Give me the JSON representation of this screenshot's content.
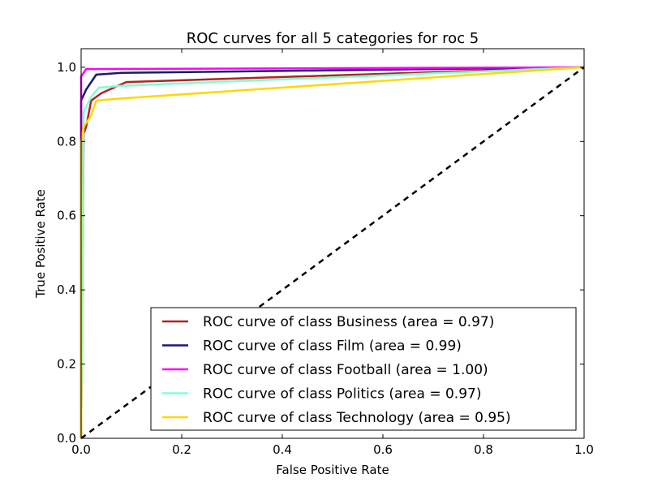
{
  "chart_data": {
    "type": "line",
    "title": "ROC curves for all 5 categories for roc 5",
    "xlabel": "False Positive Rate",
    "ylabel": "True Positive Rate",
    "xlim": [
      0.0,
      1.0
    ],
    "ylim": [
      0.0,
      1.05
    ],
    "x_ticks": [
      "0.0",
      "0.2",
      "0.4",
      "0.6",
      "0.8",
      "1.0"
    ],
    "y_ticks": [
      "0.0",
      "0.2",
      "0.4",
      "0.6",
      "0.8",
      "1.0"
    ],
    "grid": false,
    "legend_position": "lower-right",
    "series": [
      {
        "name": "ROC curve of class Business (area = 0.97)",
        "color": "#b22222",
        "points": [
          [
            0.0,
            0.0
          ],
          [
            0.005,
            0.82
          ],
          [
            0.01,
            0.84
          ],
          [
            0.02,
            0.91
          ],
          [
            0.04,
            0.93
          ],
          [
            0.09,
            0.96
          ],
          [
            1.0,
            1.0
          ]
        ]
      },
      {
        "name": "ROC curve of class Film (area = 0.99)",
        "color": "#191970",
        "points": [
          [
            0.0,
            0.0
          ],
          [
            0.0,
            0.91
          ],
          [
            0.01,
            0.94
          ],
          [
            0.03,
            0.98
          ],
          [
            0.08,
            0.985
          ],
          [
            1.0,
            1.0
          ]
        ]
      },
      {
        "name": "ROC curve of class Football (area = 1.00)",
        "color": "#ff00ff",
        "points": [
          [
            0.0,
            0.0
          ],
          [
            0.0,
            0.975
          ],
          [
            0.01,
            0.995
          ],
          [
            1.0,
            1.0
          ]
        ]
      },
      {
        "name": "ROC curve of class Politics (area = 0.97)",
        "color": "#7fffd4",
        "points": [
          [
            0.0,
            0.0
          ],
          [
            0.005,
            0.88
          ],
          [
            0.02,
            0.92
          ],
          [
            0.035,
            0.945
          ],
          [
            0.08,
            0.95
          ],
          [
            1.0,
            1.0
          ]
        ]
      },
      {
        "name": "ROC curve of class Technology (area = 0.95)",
        "color": "#ffd700",
        "points": [
          [
            0.0,
            0.0
          ],
          [
            0.0,
            0.8
          ],
          [
            0.005,
            0.84
          ],
          [
            0.02,
            0.87
          ],
          [
            0.03,
            0.91
          ],
          [
            0.07,
            0.915
          ],
          [
            1.0,
            1.0
          ]
        ]
      }
    ],
    "reference_line": {
      "color": "#000000",
      "style": "dashed",
      "points": [
        [
          0.0,
          0.0
        ],
        [
          1.0,
          1.0
        ]
      ]
    }
  }
}
